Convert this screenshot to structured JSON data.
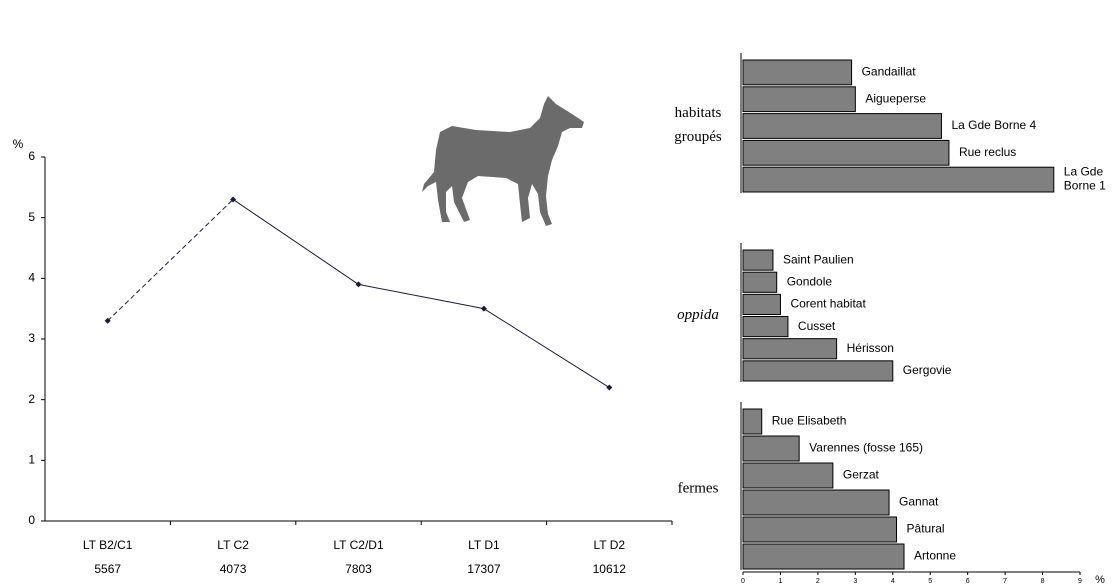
{
  "chart_data": [
    {
      "type": "line",
      "y_label": "%",
      "categories": [
        "LT B2/C1",
        "LT C2",
        "LT C2/D1",
        "LT D1",
        "LT D2"
      ],
      "counts": [
        "5567",
        "4073",
        "7803",
        "17307",
        "10612"
      ],
      "values": [
        3.3,
        5.3,
        3.9,
        3.5,
        2.2
      ],
      "dashed_segments": [
        0
      ],
      "color": "#1a1a3a",
      "ylim": [
        0,
        6
      ],
      "yticks": [
        0,
        1,
        2,
        3,
        4,
        5,
        6
      ]
    },
    {
      "type": "hbar",
      "x_label": "%",
      "color": "#808080",
      "groups": [
        {
          "name": "habitats groupés",
          "italic": false,
          "categories": [
            "Gandaillat",
            "Aigueperse",
            "La Gde Borne 4",
            "Rue reclus",
            "La Gde Borne 1"
          ],
          "values": [
            2.9,
            3.0,
            5.3,
            5.5,
            8.3
          ]
        },
        {
          "name": "oppida",
          "italic": true,
          "categories": [
            "Saint Paulien",
            "Gondole",
            "Corent  habitat",
            "Cusset",
            "Hérisson",
            "Gergovie"
          ],
          "values": [
            0.8,
            0.9,
            1.0,
            1.2,
            2.5,
            4.0
          ]
        },
        {
          "name": "fermes",
          "italic": false,
          "categories": [
            "Rue Elisabeth",
            "Varennes (fosse 165)",
            "Gerzat",
            "Gannat",
            "Pâtural",
            "Artonne"
          ],
          "values": [
            0.5,
            1.5,
            2.4,
            3.9,
            4.1,
            4.3
          ]
        }
      ],
      "xlim": [
        0,
        9
      ],
      "xticks": [
        0,
        1,
        2,
        3,
        4,
        5,
        6,
        7,
        8,
        9
      ]
    }
  ]
}
